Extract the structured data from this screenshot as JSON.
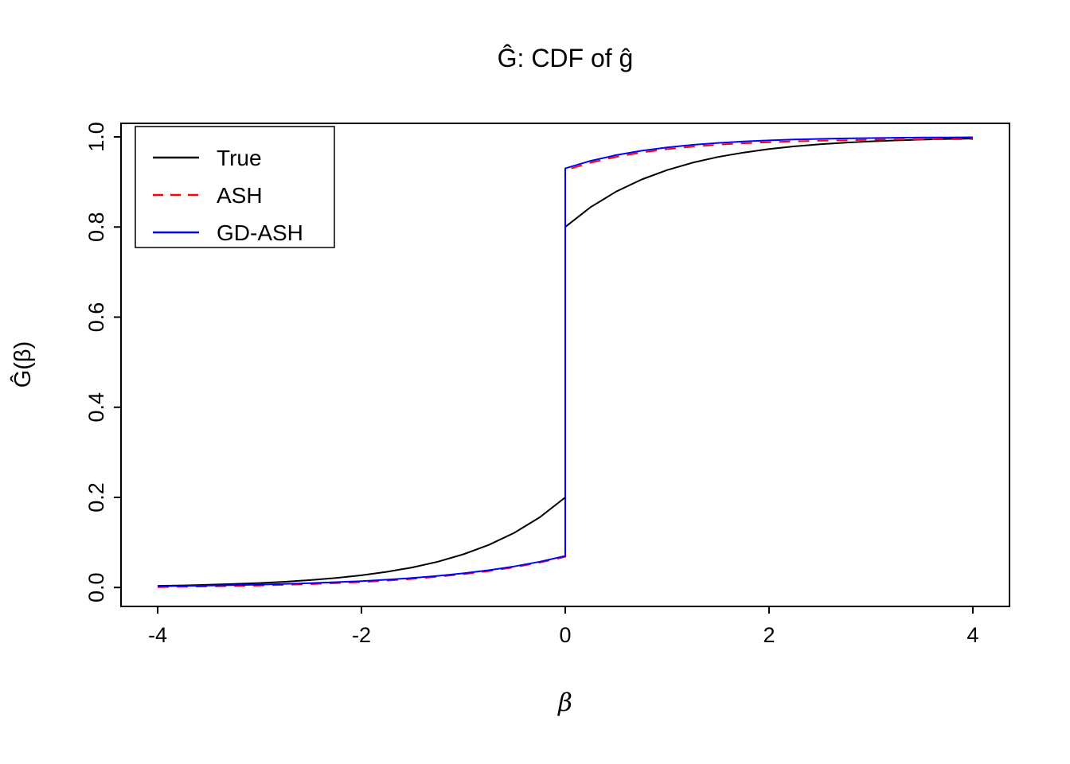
{
  "figure": {
    "background": "#ffffff",
    "axis_color": "#000000"
  },
  "chart_data": {
    "type": "line",
    "title": "Ĝ: CDF of ĝ",
    "xlabel": "β",
    "ylabel": "Ĝ(β)",
    "xlim": [
      -4.36,
      4.36
    ],
    "ylim": [
      -0.042,
      1.03
    ],
    "grid": false,
    "x_ticks": {
      "values": [
        -4,
        -2,
        0,
        2,
        4
      ],
      "labels": [
        "-4",
        "-2",
        "0",
        "2",
        "4"
      ]
    },
    "y_ticks": {
      "values": [
        0,
        0.2,
        0.4,
        0.6,
        0.8,
        1.0
      ],
      "labels": [
        "0.0",
        "0.2",
        "0.4",
        "0.6",
        "0.8",
        "1.0"
      ]
    },
    "legend": {
      "position": "top-left",
      "entries": [
        {
          "label": "True",
          "color": "#000000",
          "style": "solid"
        },
        {
          "label": "ASH",
          "color": "#ff0000",
          "style": "dashed"
        },
        {
          "label": "GD-ASH",
          "color": "#0000ff",
          "style": "solid"
        }
      ]
    },
    "series": [
      {
        "name": "True",
        "color": "#000000",
        "style": "solid",
        "points": [
          [
            -4,
            0.0037
          ],
          [
            -3.75,
            0.0047
          ],
          [
            -3.5,
            0.006
          ],
          [
            -3.25,
            0.0078
          ],
          [
            -3,
            0.01
          ],
          [
            -2.75,
            0.0128
          ],
          [
            -2.5,
            0.0164
          ],
          [
            -2.25,
            0.0211
          ],
          [
            -2,
            0.0271
          ],
          [
            -1.75,
            0.0348
          ],
          [
            -1.5,
            0.0446
          ],
          [
            -1.25,
            0.0573
          ],
          [
            -1,
            0.0736
          ],
          [
            -0.75,
            0.0945
          ],
          [
            -0.5,
            0.1213
          ],
          [
            -0.25,
            0.1558
          ],
          [
            0,
            0.2
          ],
          [
            0,
            0.8
          ],
          [
            0.25,
            0.8442
          ],
          [
            0.5,
            0.8787
          ],
          [
            0.75,
            0.9055
          ],
          [
            1,
            0.9264
          ],
          [
            1.25,
            0.9427
          ],
          [
            1.5,
            0.9554
          ],
          [
            1.75,
            0.9652
          ],
          [
            2,
            0.9729
          ],
          [
            2.25,
            0.9789
          ],
          [
            2.5,
            0.9836
          ],
          [
            2.75,
            0.9872
          ],
          [
            3,
            0.99
          ],
          [
            3.25,
            0.9922
          ],
          [
            3.5,
            0.994
          ],
          [
            3.75,
            0.9953
          ],
          [
            4,
            0.9963
          ]
        ]
      },
      {
        "name": "ASH",
        "color": "#ff0000",
        "style": "dashed",
        "points": [
          [
            -4,
            0.0009
          ],
          [
            -3.5,
            0.0023
          ],
          [
            -3,
            0.0044
          ],
          [
            -2.5,
            0.0075
          ],
          [
            -2,
            0.0121
          ],
          [
            -1.75,
            0.0153
          ],
          [
            -1.5,
            0.0191
          ],
          [
            -1.25,
            0.0238
          ],
          [
            -1,
            0.0295
          ],
          [
            -0.75,
            0.0364
          ],
          [
            -0.5,
            0.0449
          ],
          [
            -0.25,
            0.0553
          ],
          [
            0,
            0.068
          ],
          [
            0,
            0.926
          ],
          [
            0.25,
            0.9428
          ],
          [
            0.5,
            0.9556
          ],
          [
            0.75,
            0.9653
          ],
          [
            1,
            0.9727
          ],
          [
            1.25,
            0.9783
          ],
          [
            1.5,
            0.9826
          ],
          [
            1.75,
            0.9858
          ],
          [
            2,
            0.9882
          ],
          [
            2.25,
            0.9901
          ],
          [
            2.5,
            0.9915
          ],
          [
            2.75,
            0.9926
          ],
          [
            3,
            0.9934
          ],
          [
            3.25,
            0.994
          ],
          [
            3.5,
            0.9945
          ],
          [
            3.75,
            0.9948
          ],
          [
            4,
            0.9951
          ]
        ]
      },
      {
        "name": "GD-ASH",
        "color": "#0000ff",
        "style": "solid",
        "points": [
          [
            -4,
            0.0029
          ],
          [
            -3.5,
            0.0043
          ],
          [
            -3,
            0.0064
          ],
          [
            -2.5,
            0.0095
          ],
          [
            -2,
            0.0141
          ],
          [
            -1.75,
            0.0173
          ],
          [
            -1.5,
            0.0211
          ],
          [
            -1.25,
            0.0258
          ],
          [
            -1,
            0.0315
          ],
          [
            -0.75,
            0.0384
          ],
          [
            -0.5,
            0.0469
          ],
          [
            -0.25,
            0.0573
          ],
          [
            0,
            0.07
          ],
          [
            0,
            0.93
          ],
          [
            0.25,
            0.9468
          ],
          [
            0.5,
            0.9596
          ],
          [
            0.75,
            0.9693
          ],
          [
            1,
            0.9767
          ],
          [
            1.25,
            0.9823
          ],
          [
            1.5,
            0.9866
          ],
          [
            1.75,
            0.9898
          ],
          [
            2,
            0.9922
          ],
          [
            2.25,
            0.9941
          ],
          [
            2.5,
            0.9955
          ],
          [
            2.75,
            0.9966
          ],
          [
            3,
            0.9974
          ],
          [
            3.25,
            0.998
          ],
          [
            3.5,
            0.9985
          ],
          [
            3.75,
            0.9988
          ],
          [
            4,
            0.9991
          ]
        ]
      }
    ]
  }
}
